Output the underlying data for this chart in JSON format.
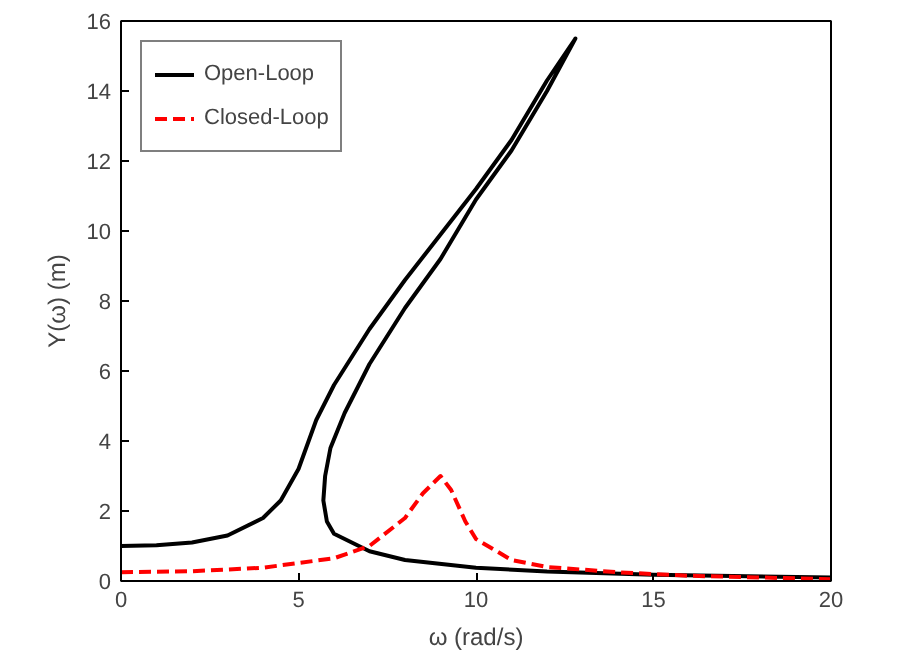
{
  "chart_data": {
    "type": "line",
    "xlabel": "ω (rad/s)",
    "ylabel": "Y(ω) (m)",
    "xlim": [
      0,
      20
    ],
    "ylim": [
      0,
      16
    ],
    "xticks": [
      0,
      5,
      10,
      15,
      20
    ],
    "yticks": [
      0,
      2,
      4,
      6,
      8,
      10,
      12,
      14,
      16
    ],
    "grid": false,
    "legend": "top left",
    "marker": "none",
    "series": [
      {
        "name": "Open-Loop",
        "color": "#000000",
        "line_style": "solid",
        "x": [
          0,
          1,
          2,
          3,
          4,
          4.5,
          5,
          5.5,
          6,
          7,
          8,
          9,
          10,
          11,
          12,
          12.8,
          12,
          11,
          10,
          9,
          8,
          7,
          6.3,
          5.9,
          5.75,
          5.7,
          5.8,
          6,
          7,
          8,
          10,
          12,
          15,
          20
        ],
        "values": [
          1.0,
          1.02,
          1.1,
          1.3,
          1.8,
          2.3,
          3.2,
          4.6,
          5.6,
          7.2,
          8.6,
          9.9,
          11.2,
          12.6,
          14.3,
          15.5,
          14.0,
          12.3,
          10.9,
          9.2,
          7.8,
          6.2,
          4.8,
          3.8,
          3.0,
          2.3,
          1.7,
          1.35,
          0.85,
          0.6,
          0.38,
          0.27,
          0.18,
          0.1
        ]
      },
      {
        "name": "Closed-Loop",
        "color": "#ff0000",
        "line_style": "dashed",
        "x": [
          0,
          2,
          4,
          6,
          7,
          8,
          8.5,
          9,
          9.3,
          9.7,
          10,
          11,
          12,
          14,
          16,
          18,
          20
        ],
        "values": [
          0.25,
          0.28,
          0.38,
          0.65,
          1.0,
          1.8,
          2.5,
          3.0,
          2.6,
          1.7,
          1.2,
          0.6,
          0.4,
          0.25,
          0.15,
          0.1,
          0.05
        ]
      }
    ]
  }
}
